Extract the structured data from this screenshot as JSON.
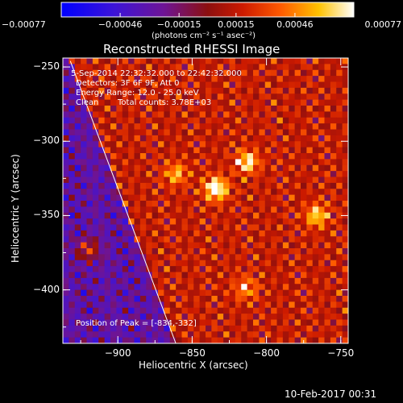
{
  "chart_data": {
    "type": "heatmap",
    "title": "Reconstructed RHESSI Image",
    "xlabel": "Heliocentric X (arcsec)",
    "ylabel": "Heliocentric Y (arcsec)",
    "xlim": [
      -937,
      -745
    ],
    "ylim": [
      -436,
      -244
    ],
    "xticks": [
      -900,
      -850,
      -800,
      -750
    ],
    "yticks": [
      -250,
      -300,
      -350,
      -400
    ],
    "xtick_labels": [
      "−900",
      "−850",
      "−800",
      "−750"
    ],
    "ytick_labels": [
      "−250",
      "−300",
      "−350",
      "−400"
    ],
    "colorbar": {
      "min": -0.00077,
      "max": 0.00077,
      "ticks": [
        -0.00077,
        -0.00046,
        -0.00015,
        0.00015,
        0.00046,
        0.00077
      ],
      "tick_labels": [
        "−0.00077",
        "−0.00046",
        "−0.00015",
        "0.00015",
        "0.00046",
        "0.00077"
      ],
      "unit_label": "(photons cm⁻² s⁻¹ asec⁻²)"
    },
    "annotations": {
      "time_range": "5-Sep-2014 22:32:32.000 to 22:42:32.000",
      "detectors": "Detectors: 3F 6F 9F, Att 0",
      "energy": "Energy Range: 12.0 - 25.0 keV",
      "clean": "Clean",
      "counts": "Total counts: 3.78E+03",
      "peak": "Position of Peak = [-834,-332]"
    },
    "peak": [
      -834,
      -332
    ],
    "bright_sources": [
      {
        "x": -834,
        "y": -332,
        "value": 0.00077
      },
      {
        "x": -813,
        "y": -314,
        "value": 0.00058
      },
      {
        "x": -766,
        "y": -350,
        "value": 0.00052
      },
      {
        "x": -920,
        "y": -373,
        "value": 0.0005
      },
      {
        "x": -861,
        "y": -322,
        "value": 0.00042
      },
      {
        "x": -814,
        "y": -399,
        "value": 0.00038
      }
    ],
    "limb_line": [
      [
        -932,
        -246
      ],
      [
        -861,
        -436
      ]
    ]
  },
  "footer": {
    "timestamp": "10-Feb-2017 00:31"
  }
}
